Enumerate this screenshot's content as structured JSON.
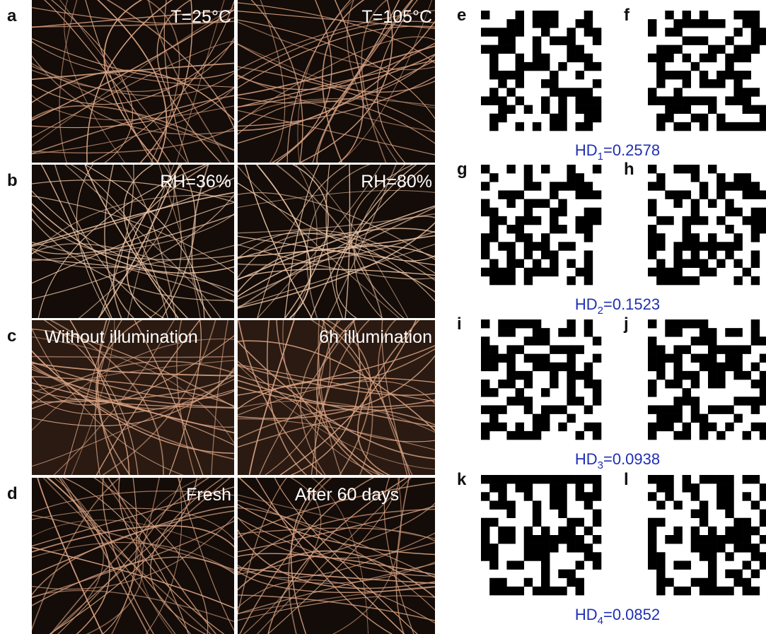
{
  "rows": [
    {
      "letter": "a",
      "left_label": "T=25°C",
      "right_label": "T=105°C"
    },
    {
      "letter": "b",
      "left_label": "RH=36%",
      "right_label": "RH=80%"
    },
    {
      "letter": "c",
      "left_label": "Without illumination",
      "right_label": "6h illumination"
    },
    {
      "letter": "d",
      "left_label": "Fresh",
      "right_label": "After 60 days"
    }
  ],
  "patterns": [
    {
      "left_letter": "e",
      "right_letter": "f",
      "hd_symbol": "HD",
      "hd_index": "1",
      "hd_value": "=0.2578"
    },
    {
      "left_letter": "g",
      "right_letter": "h",
      "hd_symbol": "HD",
      "hd_index": "2",
      "hd_value": "=0.1523"
    },
    {
      "left_letter": "i",
      "right_letter": "j",
      "hd_symbol": "HD",
      "hd_index": "3",
      "hd_value": "=0.0938"
    },
    {
      "left_letter": "k",
      "right_letter": "l",
      "hd_symbol": "HD",
      "hd_index": "4",
      "hd_value": "=0.0852"
    }
  ]
}
